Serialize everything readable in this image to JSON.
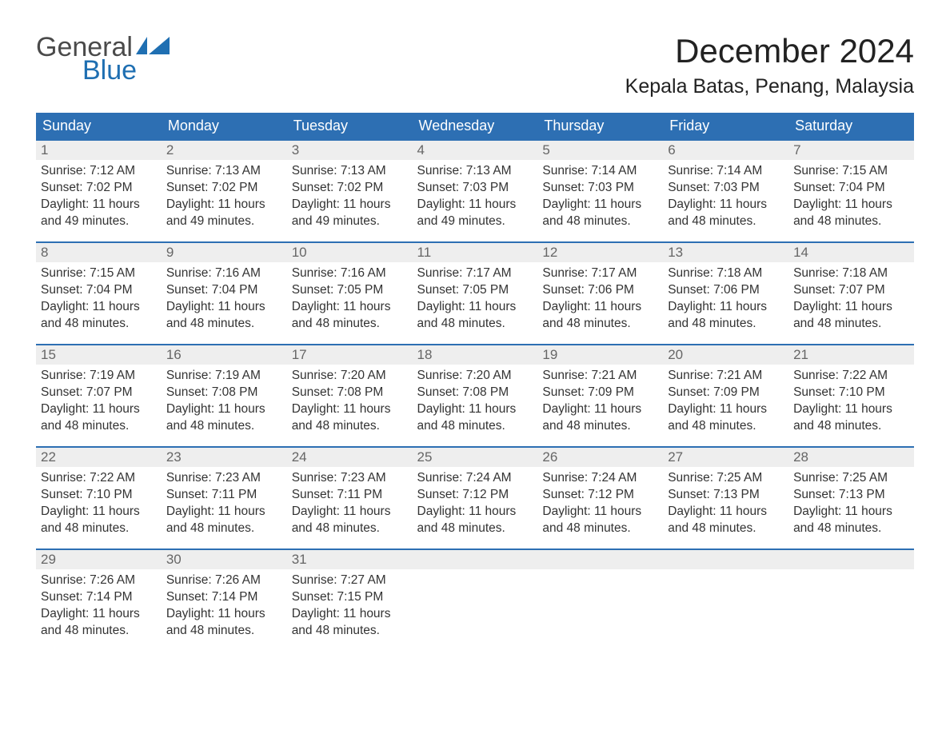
{
  "logo": {
    "part1": "General",
    "part2": "Blue"
  },
  "header": {
    "month_title": "December 2024",
    "location": "Kepala Batas, Penang, Malaysia"
  },
  "colors": {
    "header_bg": "#2d6fb3",
    "header_text": "#ffffff",
    "daynum_bg": "#eeeeee",
    "daynum_text": "#666666",
    "body_text": "#333333",
    "week_border": "#2d6fb3",
    "logo_gray": "#4a4a4a",
    "logo_blue": "#1f6fb2"
  },
  "daysOfWeek": [
    "Sunday",
    "Monday",
    "Tuesday",
    "Wednesday",
    "Thursday",
    "Friday",
    "Saturday"
  ],
  "labels": {
    "sunrise": "Sunrise:",
    "sunset": "Sunset:",
    "daylight": "Daylight:"
  },
  "weeks": [
    [
      {
        "n": "1",
        "sr": "7:12 AM",
        "ss": "7:02 PM",
        "dl": "11 hours and 49 minutes."
      },
      {
        "n": "2",
        "sr": "7:13 AM",
        "ss": "7:02 PM",
        "dl": "11 hours and 49 minutes."
      },
      {
        "n": "3",
        "sr": "7:13 AM",
        "ss": "7:02 PM",
        "dl": "11 hours and 49 minutes."
      },
      {
        "n": "4",
        "sr": "7:13 AM",
        "ss": "7:03 PM",
        "dl": "11 hours and 49 minutes."
      },
      {
        "n": "5",
        "sr": "7:14 AM",
        "ss": "7:03 PM",
        "dl": "11 hours and 48 minutes."
      },
      {
        "n": "6",
        "sr": "7:14 AM",
        "ss": "7:03 PM",
        "dl": "11 hours and 48 minutes."
      },
      {
        "n": "7",
        "sr": "7:15 AM",
        "ss": "7:04 PM",
        "dl": "11 hours and 48 minutes."
      }
    ],
    [
      {
        "n": "8",
        "sr": "7:15 AM",
        "ss": "7:04 PM",
        "dl": "11 hours and 48 minutes."
      },
      {
        "n": "9",
        "sr": "7:16 AM",
        "ss": "7:04 PM",
        "dl": "11 hours and 48 minutes."
      },
      {
        "n": "10",
        "sr": "7:16 AM",
        "ss": "7:05 PM",
        "dl": "11 hours and 48 minutes."
      },
      {
        "n": "11",
        "sr": "7:17 AM",
        "ss": "7:05 PM",
        "dl": "11 hours and 48 minutes."
      },
      {
        "n": "12",
        "sr": "7:17 AM",
        "ss": "7:06 PM",
        "dl": "11 hours and 48 minutes."
      },
      {
        "n": "13",
        "sr": "7:18 AM",
        "ss": "7:06 PM",
        "dl": "11 hours and 48 minutes."
      },
      {
        "n": "14",
        "sr": "7:18 AM",
        "ss": "7:07 PM",
        "dl": "11 hours and 48 minutes."
      }
    ],
    [
      {
        "n": "15",
        "sr": "7:19 AM",
        "ss": "7:07 PM",
        "dl": "11 hours and 48 minutes."
      },
      {
        "n": "16",
        "sr": "7:19 AM",
        "ss": "7:08 PM",
        "dl": "11 hours and 48 minutes."
      },
      {
        "n": "17",
        "sr": "7:20 AM",
        "ss": "7:08 PM",
        "dl": "11 hours and 48 minutes."
      },
      {
        "n": "18",
        "sr": "7:20 AM",
        "ss": "7:08 PM",
        "dl": "11 hours and 48 minutes."
      },
      {
        "n": "19",
        "sr": "7:21 AM",
        "ss": "7:09 PM",
        "dl": "11 hours and 48 minutes."
      },
      {
        "n": "20",
        "sr": "7:21 AM",
        "ss": "7:09 PM",
        "dl": "11 hours and 48 minutes."
      },
      {
        "n": "21",
        "sr": "7:22 AM",
        "ss": "7:10 PM",
        "dl": "11 hours and 48 minutes."
      }
    ],
    [
      {
        "n": "22",
        "sr": "7:22 AM",
        "ss": "7:10 PM",
        "dl": "11 hours and 48 minutes."
      },
      {
        "n": "23",
        "sr": "7:23 AM",
        "ss": "7:11 PM",
        "dl": "11 hours and 48 minutes."
      },
      {
        "n": "24",
        "sr": "7:23 AM",
        "ss": "7:11 PM",
        "dl": "11 hours and 48 minutes."
      },
      {
        "n": "25",
        "sr": "7:24 AM",
        "ss": "7:12 PM",
        "dl": "11 hours and 48 minutes."
      },
      {
        "n": "26",
        "sr": "7:24 AM",
        "ss": "7:12 PM",
        "dl": "11 hours and 48 minutes."
      },
      {
        "n": "27",
        "sr": "7:25 AM",
        "ss": "7:13 PM",
        "dl": "11 hours and 48 minutes."
      },
      {
        "n": "28",
        "sr": "7:25 AM",
        "ss": "7:13 PM",
        "dl": "11 hours and 48 minutes."
      }
    ],
    [
      {
        "n": "29",
        "sr": "7:26 AM",
        "ss": "7:14 PM",
        "dl": "11 hours and 48 minutes."
      },
      {
        "n": "30",
        "sr": "7:26 AM",
        "ss": "7:14 PM",
        "dl": "11 hours and 48 minutes."
      },
      {
        "n": "31",
        "sr": "7:27 AM",
        "ss": "7:15 PM",
        "dl": "11 hours and 48 minutes."
      },
      null,
      null,
      null,
      null
    ]
  ]
}
